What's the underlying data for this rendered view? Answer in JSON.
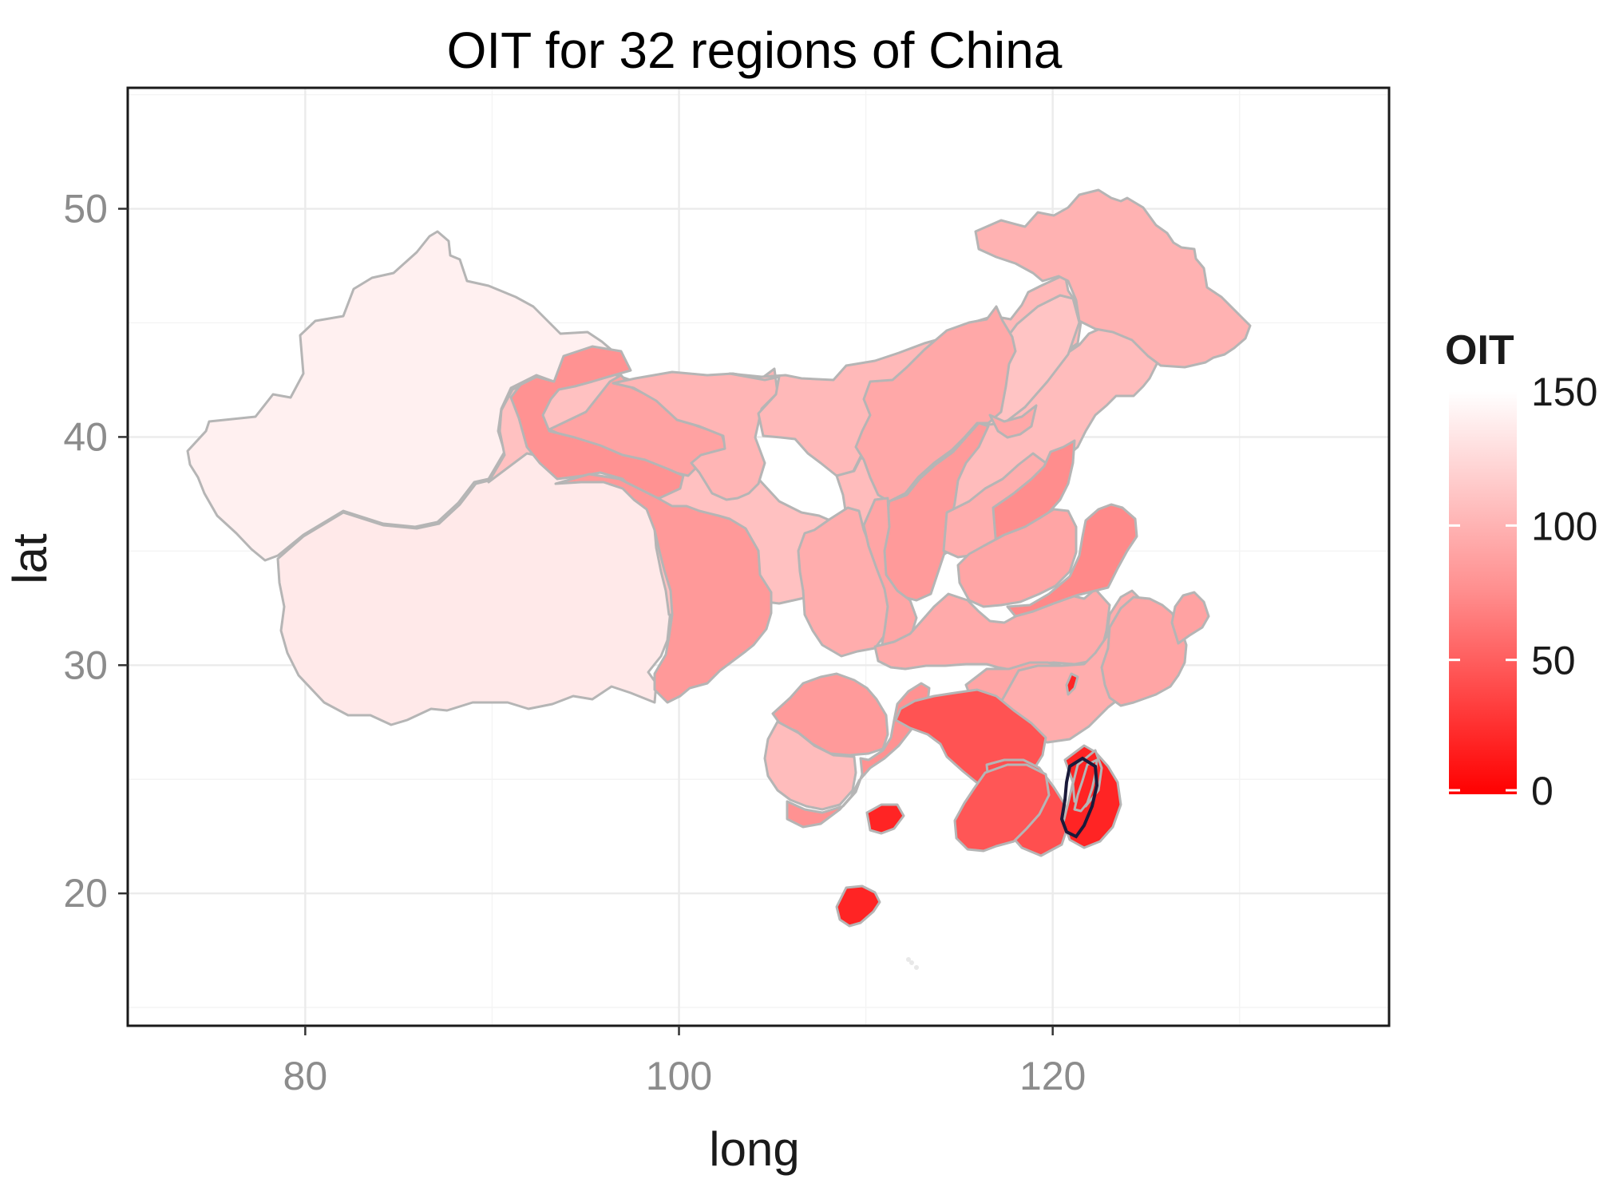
{
  "chart_data": {
    "type": "choropleth",
    "title": "OIT for 32 regions of China",
    "xlabel": "long",
    "ylabel": "lat",
    "xlim": [
      70.5,
      138
    ],
    "ylim": [
      14.2,
      55.3
    ],
    "x_ticks": [
      80,
      100,
      120
    ],
    "y_ticks": [
      20,
      30,
      40,
      50
    ],
    "grid": true,
    "legend": {
      "title": "OIT",
      "position": "right",
      "ticks": [
        0,
        50,
        100,
        150
      ],
      "range": [
        0,
        150
      ],
      "low_color": "#ff0000",
      "high_color": "#ffffff"
    },
    "regions": [
      {
        "value": 135
      },
      {
        "value": 140
      },
      {
        "value": 108
      },
      {
        "value": 88
      },
      {
        "value": 100
      },
      {
        "value": 103
      },
      {
        "value": 105
      },
      {
        "value": 110
      },
      {
        "value": 98
      },
      {
        "value": 78
      },
      {
        "value": 82
      },
      {
        "value": 92
      },
      {
        "value": 83
      },
      {
        "value": 95
      },
      {
        "value": 90
      },
      {
        "value": 95
      },
      {
        "value": 75
      },
      {
        "value": 90
      },
      {
        "value": 93
      },
      {
        "value": 72
      },
      {
        "value": 90
      },
      {
        "value": 95
      },
      {
        "value": 90
      },
      {
        "value": 88
      },
      {
        "value": 83
      },
      {
        "value": 105
      },
      {
        "value": 78
      },
      {
        "value": 40
      },
      {
        "value": 38
      },
      {
        "value": 42
      },
      {
        "value": 15
      },
      {
        "value": null
      }
    ]
  }
}
